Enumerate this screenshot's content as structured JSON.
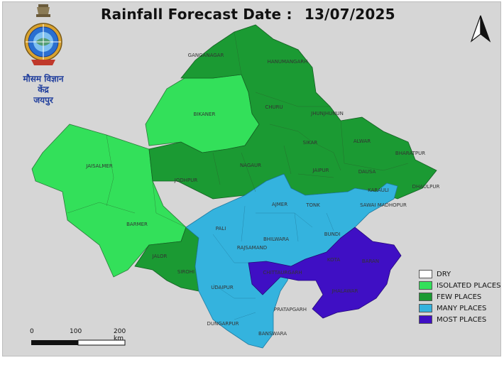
{
  "title": {
    "label": "Rainfall Forecast Date :",
    "date": "13/07/2025"
  },
  "logo": {
    "emblem": "imd-emblem-icon",
    "line1": "मौसम विज्ञान",
    "line2": "केंद्र",
    "line3": "जयपुर"
  },
  "north_arrow": "north-arrow-icon",
  "legend": {
    "items": [
      {
        "key": "dry",
        "label": "DRY",
        "color": "#ffffff"
      },
      {
        "key": "isolated",
        "label": "ISOLATED PLACES",
        "color": "#33e05a"
      },
      {
        "key": "few",
        "label": "FEW PLACES",
        "color": "#1b9a33"
      },
      {
        "key": "many",
        "label": "MANY PLACES",
        "color": "#34b3de"
      },
      {
        "key": "most",
        "label": "MOST PLACES",
        "color": "#3f0fc4"
      }
    ]
  },
  "scale": {
    "tick0": "0",
    "tick1": "100",
    "tick2": "200 km"
  },
  "districts": [
    {
      "name": "GANGANAGAR",
      "category": "few"
    },
    {
      "name": "HANUMANGARH",
      "category": "few"
    },
    {
      "name": "BIKANER",
      "category": "isolated"
    },
    {
      "name": "CHURU",
      "category": "few"
    },
    {
      "name": "JHUNJHUNUN",
      "category": "few"
    },
    {
      "name": "SIKAR",
      "category": "few"
    },
    {
      "name": "ALWAR",
      "category": "few"
    },
    {
      "name": "BHARATPUR",
      "category": "few"
    },
    {
      "name": "DHAULPUR",
      "category": "few"
    },
    {
      "name": "JAISALMER",
      "category": "isolated"
    },
    {
      "name": "JODHPUR",
      "category": "few"
    },
    {
      "name": "NAGAUR",
      "category": "few"
    },
    {
      "name": "JAIPUR",
      "category": "few"
    },
    {
      "name": "DAUSA",
      "category": "few"
    },
    {
      "name": "KARAULI",
      "category": "many"
    },
    {
      "name": "SAWAI MADHOPUR",
      "category": "many"
    },
    {
      "name": "AJMER",
      "category": "many"
    },
    {
      "name": "TONK",
      "category": "many"
    },
    {
      "name": "BARMER",
      "category": "isolated"
    },
    {
      "name": "PALI",
      "category": "many"
    },
    {
      "name": "BHILWARA",
      "category": "many"
    },
    {
      "name": "BUNDI",
      "category": "many"
    },
    {
      "name": "RAJSAMAND",
      "category": "many"
    },
    {
      "name": "JALOR",
      "category": "few"
    },
    {
      "name": "SIROHI",
      "category": "few"
    },
    {
      "name": "CHITTAURGARH",
      "category": "most"
    },
    {
      "name": "KOTA",
      "category": "most"
    },
    {
      "name": "BARAN",
      "category": "most"
    },
    {
      "name": "JHALAWAR",
      "category": "most"
    },
    {
      "name": "UDAIPUR",
      "category": "many"
    },
    {
      "name": "PRATAPGARH",
      "category": "many"
    },
    {
      "name": "DUNGARPUR",
      "category": "many"
    },
    {
      "name": "BANSWARA",
      "category": "many"
    }
  ]
}
